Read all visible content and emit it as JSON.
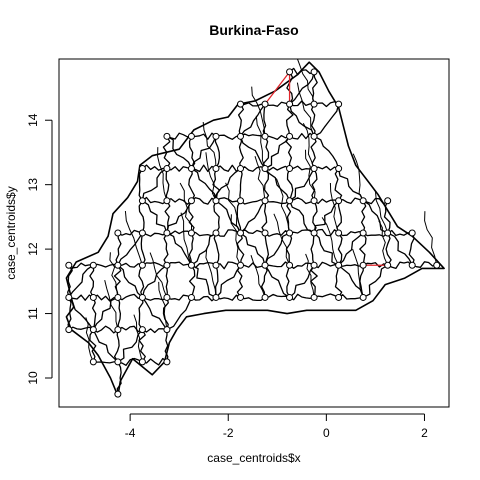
{
  "chart_data": {
    "type": "scatter",
    "title": "Burkina-Faso",
    "xlabel": "case_centroids$x",
    "ylabel": "case_centroids$y",
    "xlim": [
      -5.45,
      2.5
    ],
    "ylim": [
      9.55,
      14.95
    ],
    "xticks": [
      -4,
      -2,
      0,
      2
    ],
    "yticks": [
      10,
      11,
      12,
      13,
      14
    ],
    "colors": {
      "road": "#000000",
      "highlight": "#e0262b",
      "point": "#000000"
    },
    "points": [
      [
        -0.75,
        14.75
      ],
      [
        -0.25,
        14.75
      ],
      [
        -1.75,
        14.25
      ],
      [
        -1.25,
        14.25
      ],
      [
        -0.75,
        14.25
      ],
      [
        -0.25,
        14.25
      ],
      [
        0.25,
        14.25
      ],
      [
        -3.25,
        13.75
      ],
      [
        -2.75,
        13.75
      ],
      [
        -2.25,
        13.75
      ],
      [
        -1.75,
        13.75
      ],
      [
        -1.25,
        13.75
      ],
      [
        -0.75,
        13.75
      ],
      [
        -0.25,
        13.75
      ],
      [
        -3.75,
        13.25
      ],
      [
        -3.25,
        13.25
      ],
      [
        -2.75,
        13.25
      ],
      [
        -2.25,
        13.25
      ],
      [
        -1.75,
        13.25
      ],
      [
        -1.25,
        13.25
      ],
      [
        -0.75,
        13.25
      ],
      [
        -0.25,
        13.25
      ],
      [
        0.25,
        13.25
      ],
      [
        -3.75,
        12.75
      ],
      [
        -3.25,
        12.75
      ],
      [
        -2.75,
        12.75
      ],
      [
        -2.25,
        12.75
      ],
      [
        -1.75,
        12.75
      ],
      [
        -1.25,
        12.75
      ],
      [
        -0.75,
        12.75
      ],
      [
        -0.25,
        12.75
      ],
      [
        0.25,
        12.75
      ],
      [
        0.75,
        12.75
      ],
      [
        1.25,
        12.75
      ],
      [
        -4.25,
        12.25
      ],
      [
        -3.75,
        12.25
      ],
      [
        -3.25,
        12.25
      ],
      [
        -2.75,
        12.25
      ],
      [
        -2.25,
        12.25
      ],
      [
        -1.75,
        12.25
      ],
      [
        -1.25,
        12.25
      ],
      [
        -0.75,
        12.25
      ],
      [
        -0.25,
        12.25
      ],
      [
        0.25,
        12.25
      ],
      [
        0.75,
        12.25
      ],
      [
        1.25,
        12.25
      ],
      [
        1.75,
        12.25
      ],
      [
        -5.25,
        11.75
      ],
      [
        -4.75,
        11.75
      ],
      [
        -4.25,
        11.75
      ],
      [
        -3.75,
        11.75
      ],
      [
        -3.25,
        11.75
      ],
      [
        -2.75,
        11.75
      ],
      [
        -2.25,
        11.75
      ],
      [
        -1.75,
        11.75
      ],
      [
        -1.25,
        11.75
      ],
      [
        -0.75,
        11.75
      ],
      [
        -0.25,
        11.75
      ],
      [
        0.25,
        11.75
      ],
      [
        0.75,
        11.75
      ],
      [
        1.25,
        11.75
      ],
      [
        1.75,
        11.75
      ],
      [
        2.25,
        11.75
      ],
      [
        -5.25,
        11.25
      ],
      [
        -4.75,
        11.25
      ],
      [
        -4.25,
        11.25
      ],
      [
        -3.75,
        11.25
      ],
      [
        -3.25,
        11.25
      ],
      [
        -2.75,
        11.25
      ],
      [
        -2.25,
        11.25
      ],
      [
        -1.75,
        11.25
      ],
      [
        -1.25,
        11.25
      ],
      [
        -0.75,
        11.25
      ],
      [
        -0.25,
        11.25
      ],
      [
        0.25,
        11.25
      ],
      [
        0.75,
        11.25
      ],
      [
        -5.25,
        10.75
      ],
      [
        -4.75,
        10.75
      ],
      [
        -4.25,
        10.75
      ],
      [
        -3.75,
        10.75
      ],
      [
        -3.25,
        10.75
      ],
      [
        -4.75,
        10.25
      ],
      [
        -4.25,
        10.25
      ],
      [
        -3.75,
        10.25
      ],
      [
        -3.25,
        10.25
      ],
      [
        -4.25,
        9.75
      ]
    ],
    "highlight_links": [
      [
        [
          -1.25,
          14.25
        ],
        [
          -0.75,
          14.75
        ]
      ],
      [
        [
          -0.75,
          14.75
        ],
        [
          -0.75,
          14.25
        ]
      ],
      [
        [
          0.75,
          11.75
        ],
        [
          1.25,
          11.75
        ]
      ]
    ],
    "outline": [
      [
        -5.15,
        11.1
      ],
      [
        -5.3,
        11.55
      ],
      [
        -5.1,
        11.8
      ],
      [
        -4.65,
        11.95
      ],
      [
        -4.45,
        12.2
      ],
      [
        -4.35,
        12.55
      ],
      [
        -4.05,
        12.8
      ],
      [
        -3.85,
        13.05
      ],
      [
        -3.8,
        13.3
      ],
      [
        -3.55,
        13.45
      ],
      [
        -3.0,
        13.55
      ],
      [
        -2.7,
        13.85
      ],
      [
        -2.3,
        14.0
      ],
      [
        -2.0,
        14.05
      ],
      [
        -1.8,
        14.25
      ],
      [
        -1.45,
        14.3
      ],
      [
        -1.05,
        14.45
      ],
      [
        -0.6,
        14.7
      ],
      [
        -0.35,
        14.9
      ],
      [
        -0.15,
        14.75
      ],
      [
        0.05,
        14.45
      ],
      [
        0.25,
        14.2
      ],
      [
        0.35,
        13.9
      ],
      [
        0.45,
        13.6
      ],
      [
        0.6,
        13.3
      ],
      [
        0.85,
        13.05
      ],
      [
        1.05,
        12.85
      ],
      [
        1.25,
        12.6
      ],
      [
        1.45,
        12.35
      ],
      [
        1.75,
        12.2
      ],
      [
        2.1,
        11.95
      ],
      [
        2.4,
        11.7
      ],
      [
        1.95,
        11.7
      ],
      [
        1.6,
        11.55
      ],
      [
        1.2,
        11.45
      ],
      [
        0.95,
        11.2
      ],
      [
        0.6,
        11.05
      ],
      [
        0.25,
        11.05
      ],
      [
        0.0,
        11.05
      ],
      [
        -0.4,
        11.05
      ],
      [
        -0.8,
        11.0
      ],
      [
        -1.2,
        11.05
      ],
      [
        -1.6,
        11.05
      ],
      [
        -2.05,
        11.05
      ],
      [
        -2.5,
        11.0
      ],
      [
        -2.85,
        10.95
      ],
      [
        -3.05,
        10.75
      ],
      [
        -3.2,
        10.55
      ],
      [
        -3.3,
        10.25
      ],
      [
        -3.55,
        10.05
      ],
      [
        -3.95,
        10.3
      ],
      [
        -4.2,
        9.95
      ],
      [
        -4.25,
        9.72
      ],
      [
        -4.4,
        10.0
      ],
      [
        -4.65,
        10.35
      ],
      [
        -4.85,
        10.55
      ],
      [
        -5.2,
        10.75
      ],
      [
        -5.3,
        10.95
      ]
    ]
  }
}
